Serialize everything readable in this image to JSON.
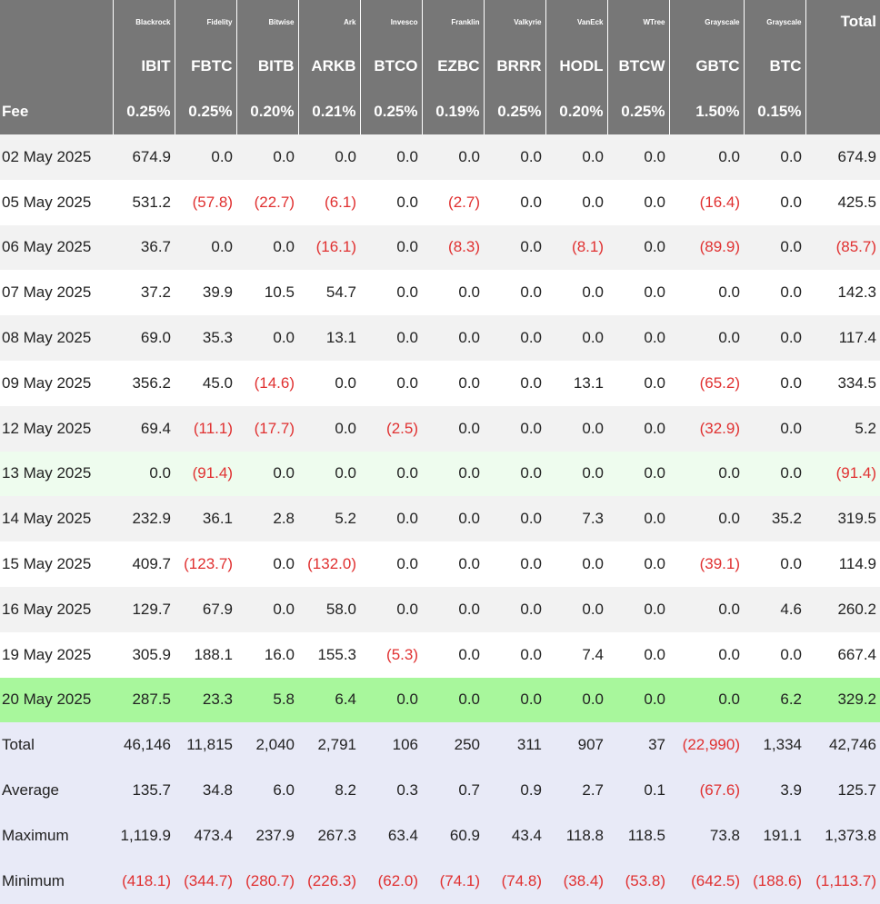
{
  "columns": [
    {
      "issuer": "Blackrock",
      "ticker": "IBIT",
      "fee": "0.25%"
    },
    {
      "issuer": "Fidelity",
      "ticker": "FBTC",
      "fee": "0.25%"
    },
    {
      "issuer": "Bitwise",
      "ticker": "BITB",
      "fee": "0.20%"
    },
    {
      "issuer": "Ark",
      "ticker": "ARKB",
      "fee": "0.21%"
    },
    {
      "issuer": "Invesco",
      "ticker": "BTCO",
      "fee": "0.25%"
    },
    {
      "issuer": "Franklin",
      "ticker": "EZBC",
      "fee": "0.19%"
    },
    {
      "issuer": "Valkyrie",
      "ticker": "BRRR",
      "fee": "0.25%"
    },
    {
      "issuer": "VanEck",
      "ticker": "HODL",
      "fee": "0.20%"
    },
    {
      "issuer": "WTree",
      "ticker": "BTCW",
      "fee": "0.25%"
    },
    {
      "issuer": "Grayscale",
      "ticker": "GBTC",
      "fee": "1.50%"
    },
    {
      "issuer": "Grayscale",
      "ticker": "BTC",
      "fee": "0.15%"
    }
  ],
  "header": {
    "total_label": "Total",
    "fee_label": "Fee"
  },
  "rows": [
    {
      "date": "02 May 2025",
      "values": [
        "674.9",
        "0.0",
        "0.0",
        "0.0",
        "0.0",
        "0.0",
        "0.0",
        "0.0",
        "0.0",
        "0.0",
        "0.0"
      ],
      "total": "674.9"
    },
    {
      "date": "05 May 2025",
      "values": [
        "531.2",
        "(57.8)",
        "(22.7)",
        "(6.1)",
        "0.0",
        "(2.7)",
        "0.0",
        "0.0",
        "0.0",
        "(16.4)",
        "0.0"
      ],
      "total": "425.5"
    },
    {
      "date": "06 May 2025",
      "values": [
        "36.7",
        "0.0",
        "0.0",
        "(16.1)",
        "0.0",
        "(8.3)",
        "0.0",
        "(8.1)",
        "0.0",
        "(89.9)",
        "0.0"
      ],
      "total": "(85.7)"
    },
    {
      "date": "07 May 2025",
      "values": [
        "37.2",
        "39.9",
        "10.5",
        "54.7",
        "0.0",
        "0.0",
        "0.0",
        "0.0",
        "0.0",
        "0.0",
        "0.0"
      ],
      "total": "142.3"
    },
    {
      "date": "08 May 2025",
      "values": [
        "69.0",
        "35.3",
        "0.0",
        "13.1",
        "0.0",
        "0.0",
        "0.0",
        "0.0",
        "0.0",
        "0.0",
        "0.0"
      ],
      "total": "117.4"
    },
    {
      "date": "09 May 2025",
      "values": [
        "356.2",
        "45.0",
        "(14.6)",
        "0.0",
        "0.0",
        "0.0",
        "0.0",
        "13.1",
        "0.0",
        "(65.2)",
        "0.0"
      ],
      "total": "334.5"
    },
    {
      "date": "12 May 2025",
      "values": [
        "69.4",
        "(11.1)",
        "(17.7)",
        "0.0",
        "(2.5)",
        "0.0",
        "0.0",
        "0.0",
        "0.0",
        "(32.9)",
        "0.0"
      ],
      "total": "5.2"
    },
    {
      "date": "13 May 2025",
      "values": [
        "0.0",
        "(91.4)",
        "0.0",
        "0.0",
        "0.0",
        "0.0",
        "0.0",
        "0.0",
        "0.0",
        "0.0",
        "0.0"
      ],
      "total": "(91.4)"
    },
    {
      "date": "14 May 2025",
      "values": [
        "232.9",
        "36.1",
        "2.8",
        "5.2",
        "0.0",
        "0.0",
        "0.0",
        "7.3",
        "0.0",
        "0.0",
        "35.2"
      ],
      "total": "319.5"
    },
    {
      "date": "15 May 2025",
      "values": [
        "409.7",
        "(123.7)",
        "0.0",
        "(132.0)",
        "0.0",
        "0.0",
        "0.0",
        "0.0",
        "0.0",
        "(39.1)",
        "0.0"
      ],
      "total": "114.9"
    },
    {
      "date": "16 May 2025",
      "values": [
        "129.7",
        "67.9",
        "0.0",
        "58.0",
        "0.0",
        "0.0",
        "0.0",
        "0.0",
        "0.0",
        "0.0",
        "4.6"
      ],
      "total": "260.2"
    },
    {
      "date": "19 May 2025",
      "values": [
        "305.9",
        "188.1",
        "16.0",
        "155.3",
        "(5.3)",
        "0.0",
        "0.0",
        "7.4",
        "0.0",
        "0.0",
        "0.0"
      ],
      "total": "667.4"
    },
    {
      "date": "20 May 2025",
      "values": [
        "287.5",
        "23.3",
        "5.8",
        "6.4",
        "0.0",
        "0.0",
        "0.0",
        "0.0",
        "0.0",
        "0.0",
        "6.2"
      ],
      "total": "329.2"
    }
  ],
  "summary": [
    {
      "label": "Total",
      "values": [
        "46,146",
        "11,815",
        "2,040",
        "2,791",
        "106",
        "250",
        "311",
        "907",
        "37",
        "(22,990)",
        "1,334"
      ],
      "total": "42,746"
    },
    {
      "label": "Average",
      "values": [
        "135.7",
        "34.8",
        "6.0",
        "8.2",
        "0.3",
        "0.7",
        "0.9",
        "2.7",
        "0.1",
        "(67.6)",
        "3.9"
      ],
      "total": "125.7"
    },
    {
      "label": "Maximum",
      "values": [
        "1,119.9",
        "473.4",
        "237.9",
        "267.3",
        "63.4",
        "60.9",
        "43.4",
        "118.8",
        "118.5",
        "73.8",
        "191.1"
      ],
      "total": "1,373.8"
    },
    {
      "label": "Minimum",
      "values": [
        "(418.1)",
        "(344.7)",
        "(280.7)",
        "(226.3)",
        "(62.0)",
        "(74.1)",
        "(74.8)",
        "(38.4)",
        "(53.8)",
        "(642.5)",
        "(188.6)"
      ],
      "total": "(1,113.7)"
    }
  ],
  "colors": {
    "header_bg": "#777777",
    "negative": "#e03030",
    "row_alt": "#f2f2f2",
    "highlight_light": "#eefcee",
    "highlight_green": "#a8f79c",
    "summary_bg": "#e8eaf7"
  }
}
